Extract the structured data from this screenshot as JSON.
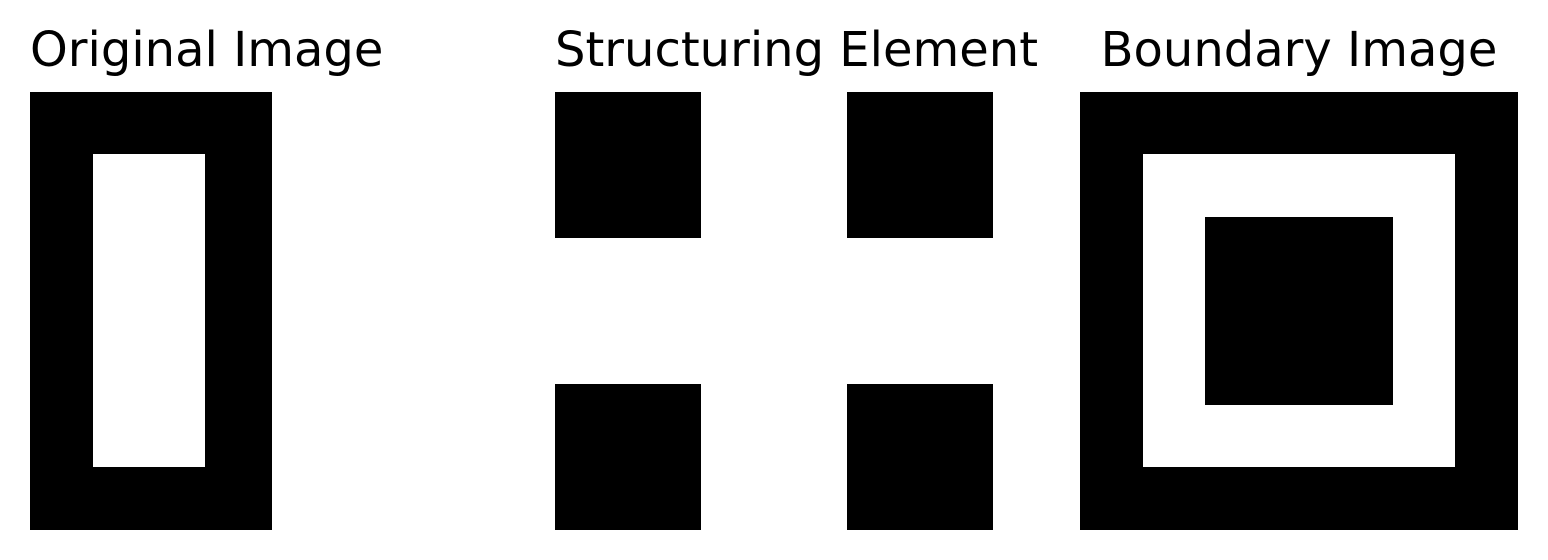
{
  "panels": [
    {
      "title": "Original Image"
    },
    {
      "title": "Structuring Element"
    },
    {
      "title": "Boundary Image"
    }
  ],
  "colors": {
    "foreground": "#000000",
    "background": "#ffffff"
  }
}
